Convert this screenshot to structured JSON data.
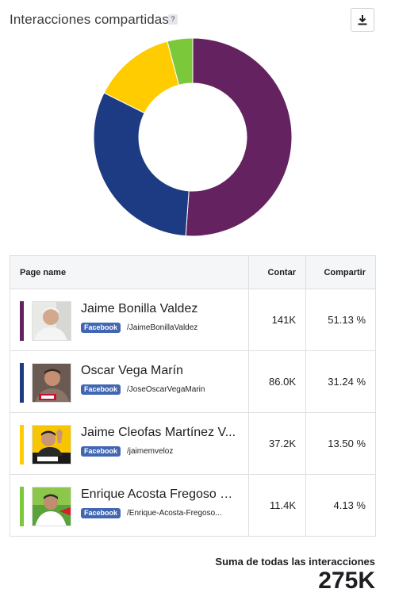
{
  "header": {
    "title": "Interacciones compartidas",
    "help_icon": "?",
    "download_icon": "download-icon"
  },
  "table": {
    "columns": {
      "name": "Page name",
      "count": "Contar",
      "share": "Compartir"
    }
  },
  "chart_data": {
    "type": "pie",
    "variant": "donut",
    "categories": [
      "Jaime Bonilla Valdez",
      "Oscar Vega Marín",
      "Jaime Cleofas Martínez V...",
      "Enrique Acosta Fregoso O..."
    ],
    "values": [
      51.13,
      31.24,
      13.5,
      4.13
    ],
    "counts": [
      "141K",
      "86.0K",
      "37.2K",
      "11.4K"
    ],
    "colors": [
      "#642360",
      "#1d3b82",
      "#fecc00",
      "#7bc93a"
    ],
    "unit": "%"
  },
  "rows": [
    {
      "name": "Jaime Bonilla Valdez",
      "platform": "Facebook",
      "handle": "/JaimeBonillaValdez",
      "count": "141K",
      "share": "51.13 %",
      "color": "#642360"
    },
    {
      "name": "Oscar Vega Marín",
      "platform": "Facebook",
      "handle": "/JoseOscarVegaMarin",
      "count": "86.0K",
      "share": "31.24 %",
      "color": "#1d3b82"
    },
    {
      "name": "Jaime Cleofas Martínez V...",
      "platform": "Facebook",
      "handle": "/jaimemveloz",
      "count": "37.2K",
      "share": "13.50 %",
      "color": "#fecc00"
    },
    {
      "name": "Enrique Acosta Fregoso O...",
      "platform": "Facebook",
      "handle": "/Enrique-Acosta-Fregoso...",
      "count": "11.4K",
      "share": "4.13 %",
      "color": "#7bc93a"
    }
  ],
  "summary": {
    "label": "Suma de todas las interacciones",
    "value": "275K"
  }
}
